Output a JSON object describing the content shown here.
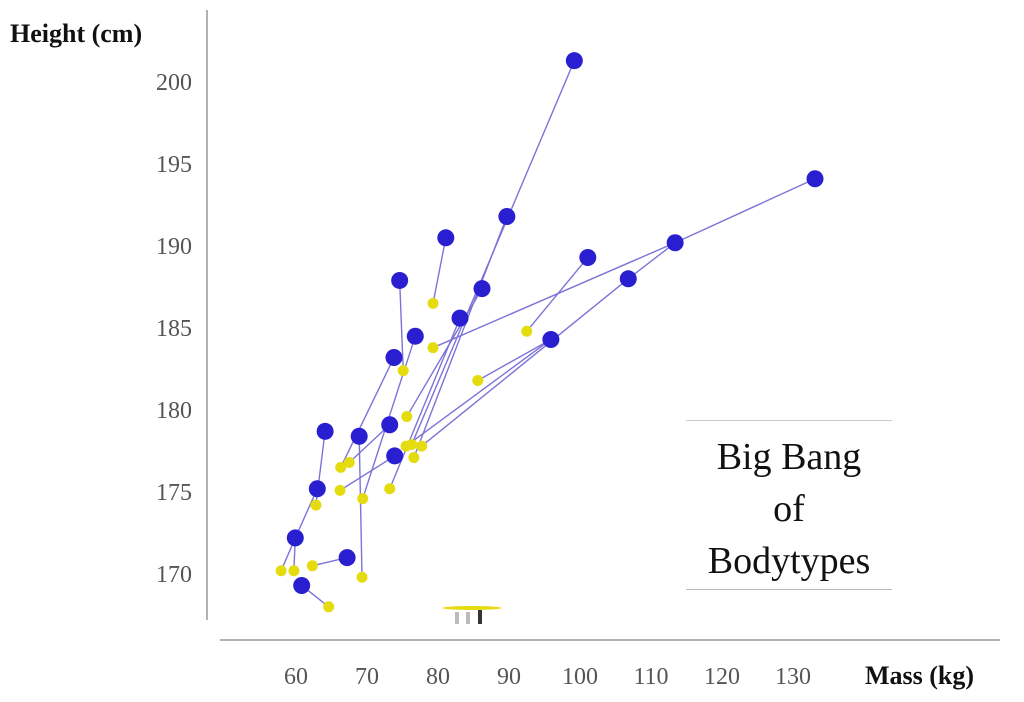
{
  "chart_data": {
    "type": "scatter",
    "title": "Big Bang of Bodytypes",
    "title_lines": [
      "Big Bang",
      "of",
      "Bodytypes"
    ],
    "xlabel": "Mass (kg)",
    "ylabel": "Height (cm)",
    "xlim": [
      50,
      135
    ],
    "ylim": [
      166.5,
      202
    ],
    "xticks": [
      60,
      70,
      80,
      90,
      100,
      110,
      120,
      130
    ],
    "yticks": [
      170,
      175,
      180,
      185,
      190,
      195,
      200
    ],
    "grid": false,
    "colors": {
      "blue": "#2a1fd0",
      "yellow": "#e5dc10",
      "line": "#7b74d8"
    },
    "series": [
      {
        "name": "blue",
        "points": [
          [
            99.2,
            201.3
          ],
          [
            133.1,
            194.1
          ],
          [
            89.7,
            191.8
          ],
          [
            81.1,
            190.5
          ],
          [
            101.1,
            189.3
          ],
          [
            113.4,
            190.2
          ],
          [
            106.8,
            188.0
          ],
          [
            74.6,
            187.9
          ],
          [
            86.2,
            187.4
          ],
          [
            83.1,
            185.6
          ],
          [
            76.8,
            184.5
          ],
          [
            95.9,
            184.3
          ],
          [
            73.8,
            183.2
          ],
          [
            64.1,
            178.7
          ],
          [
            68.9,
            178.4
          ],
          [
            73.2,
            179.1
          ],
          [
            73.9,
            177.2
          ],
          [
            63.0,
            175.2
          ],
          [
            59.9,
            172.2
          ],
          [
            67.2,
            171.0
          ],
          [
            60.8,
            169.3
          ]
        ]
      },
      {
        "name": "yellow",
        "points": [
          [
            79.3,
            186.5
          ],
          [
            92.5,
            184.8
          ],
          [
            79.3,
            183.8
          ],
          [
            75.1,
            182.4
          ],
          [
            85.6,
            181.8
          ],
          [
            75.6,
            179.6
          ],
          [
            75.5,
            177.8
          ],
          [
            76.3,
            177.9
          ],
          [
            77.7,
            177.8
          ],
          [
            76.6,
            177.1
          ],
          [
            66.3,
            176.5
          ],
          [
            67.5,
            176.8
          ],
          [
            66.2,
            175.1
          ],
          [
            69.4,
            174.6
          ],
          [
            73.2,
            175.2
          ],
          [
            62.8,
            174.2
          ],
          [
            57.9,
            170.2
          ],
          [
            59.7,
            170.2
          ],
          [
            62.3,
            170.5
          ],
          [
            69.3,
            169.8
          ],
          [
            64.6,
            168.0
          ]
        ]
      }
    ],
    "links": [
      [
        [
          "blue",
          0
        ],
        [
          "yellow",
          7
        ]
      ],
      [
        [
          "blue",
          1
        ],
        [
          "blue",
          5
        ]
      ],
      [
        [
          "blue",
          5
        ],
        [
          "yellow",
          2
        ]
      ],
      [
        [
          "blue",
          5
        ],
        [
          "blue",
          6
        ]
      ],
      [
        [
          "blue",
          6
        ],
        [
          "yellow",
          8
        ]
      ],
      [
        [
          "blue",
          11
        ],
        [
          "yellow",
          4
        ]
      ],
      [
        [
          "blue",
          11
        ],
        [
          "yellow",
          6
        ]
      ],
      [
        [
          "blue",
          4
        ],
        [
          "yellow",
          1
        ]
      ],
      [
        [
          "blue",
          2
        ],
        [
          "yellow",
          9
        ]
      ],
      [
        [
          "blue",
          3
        ],
        [
          "yellow",
          0
        ]
      ],
      [
        [
          "blue",
          7
        ],
        [
          "yellow",
          3
        ]
      ],
      [
        [
          "blue",
          8
        ],
        [
          "yellow",
          5
        ]
      ],
      [
        [
          "blue",
          9
        ],
        [
          "yellow",
          14
        ]
      ],
      [
        [
          "blue",
          10
        ],
        [
          "yellow",
          13
        ]
      ],
      [
        [
          "blue",
          12
        ],
        [
          "yellow",
          10
        ]
      ],
      [
        [
          "blue",
          15
        ],
        [
          "yellow",
          11
        ]
      ],
      [
        [
          "blue",
          16
        ],
        [
          "yellow",
          12
        ]
      ],
      [
        [
          "blue",
          14
        ],
        [
          "yellow",
          19
        ]
      ],
      [
        [
          "blue",
          13
        ],
        [
          "yellow",
          15
        ]
      ],
      [
        [
          "blue",
          17
        ],
        [
          "blue",
          18
        ]
      ],
      [
        [
          "blue",
          18
        ],
        [
          "yellow",
          16
        ]
      ],
      [
        [
          "blue",
          18
        ],
        [
          "yellow",
          17
        ]
      ],
      [
        [
          "blue",
          19
        ],
        [
          "yellow",
          18
        ]
      ],
      [
        [
          "blue",
          20
        ],
        [
          "yellow",
          20
        ]
      ]
    ]
  }
}
